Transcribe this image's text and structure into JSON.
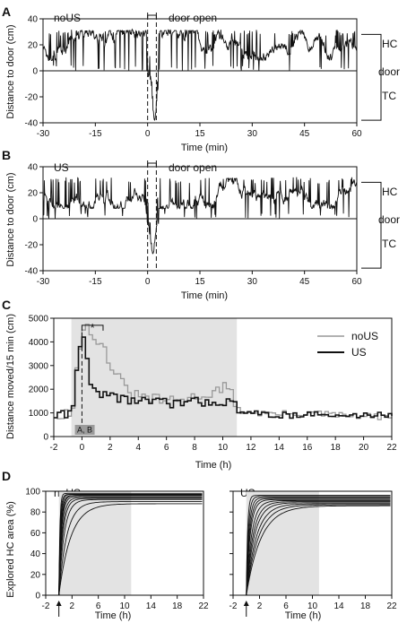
{
  "chart_data": [
    {
      "panel": "A",
      "type": "line",
      "panel_label": "A",
      "condition_label": "noUS",
      "annotation": "door open",
      "xlabel": "Time (min)",
      "ylabel": "Distance to door (cm)",
      "xlim": [
        -30,
        60
      ],
      "ylim": [
        -40,
        40
      ],
      "x_ticks": [
        -30,
        -15,
        0,
        15,
        30,
        45,
        60
      ],
      "y_ticks": [
        -40,
        -20,
        0,
        20,
        40
      ],
      "door_open_interval": [
        0,
        2.5
      ],
      "zone_labels": {
        "upper": "HC",
        "middle": "door",
        "lower": "TC"
      },
      "trace_profile": {
        "home_level": 20,
        "dip_to_door_fraction": 0.6,
        "min_value": -38,
        "min_time": 2
      }
    },
    {
      "panel": "B",
      "type": "line",
      "panel_label": "B",
      "condition_label": "US",
      "annotation": "door open",
      "xlabel": "Time (min)",
      "ylabel": "Distance to door (cm)",
      "xlim": [
        -30,
        60
      ],
      "ylim": [
        -40,
        40
      ],
      "x_ticks": [
        -30,
        -15,
        0,
        15,
        30,
        45,
        60
      ],
      "y_ticks": [
        -40,
        -20,
        0,
        20,
        40
      ],
      "door_open_interval": [
        0,
        2.5
      ],
      "zone_labels": {
        "upper": "HC",
        "middle": "door",
        "lower": "TC"
      },
      "trace_profile": {
        "home_level": 20,
        "dip_to_door_fraction": 0.45,
        "min_value": -27,
        "min_time": 1.5
      }
    },
    {
      "panel": "C",
      "type": "line",
      "panel_label": "C",
      "xlabel": "Time (h)",
      "ylabel": "Distance moved/15 min (cm)",
      "xlim": [
        -2,
        22
      ],
      "ylim": [
        0,
        5000
      ],
      "x_ticks": [
        -2,
        0,
        2,
        4,
        6,
        8,
        10,
        12,
        14,
        16,
        18,
        20,
        22
      ],
      "y_ticks": [
        0,
        1000,
        2000,
        3000,
        4000,
        5000
      ],
      "shaded_interval": [
        -0.75,
        11
      ],
      "dashed_line_x": 0,
      "significance": "*",
      "significance_span": [
        0,
        1.5
      ],
      "box_label": "A, B",
      "series": [
        {
          "name": "noUS",
          "color": "#999999",
          "points": [
            [
              -2,
              900
            ],
            [
              -1.5,
              950
            ],
            [
              -1,
              1050
            ],
            [
              -0.75,
              1200
            ],
            [
              -0.5,
              2900
            ],
            [
              -0.25,
              3700
            ],
            [
              0,
              4500
            ],
            [
              0.25,
              4750
            ],
            [
              0.5,
              4300
            ],
            [
              0.75,
              4100
            ],
            [
              1,
              3900
            ],
            [
              1.5,
              3700
            ],
            [
              2,
              2900
            ],
            [
              2.5,
              2500
            ],
            [
              3,
              2000
            ],
            [
              3.5,
              1800
            ],
            [
              4,
              1700
            ],
            [
              5,
              1600
            ],
            [
              6,
              1500
            ],
            [
              7,
              1550
            ],
            [
              8,
              1700
            ],
            [
              9,
              1800
            ],
            [
              10,
              2100
            ],
            [
              10.5,
              1800
            ],
            [
              11,
              1100
            ],
            [
              12,
              1000
            ],
            [
              14,
              950
            ],
            [
              16,
              1000
            ],
            [
              18,
              900
            ],
            [
              20,
              850
            ],
            [
              22,
              800
            ]
          ]
        },
        {
          "name": "US",
          "color": "#111111",
          "points": [
            [
              -2,
              900
            ],
            [
              -1.5,
              950
            ],
            [
              -1,
              1000
            ],
            [
              -0.75,
              1300
            ],
            [
              -0.5,
              2800
            ],
            [
              -0.25,
              3800
            ],
            [
              0,
              4200
            ],
            [
              0.25,
              3300
            ],
            [
              0.5,
              2200
            ],
            [
              1,
              1900
            ],
            [
              2,
              1700
            ],
            [
              3,
              1600
            ],
            [
              4,
              1500
            ],
            [
              6,
              1400
            ],
            [
              8,
              1450
            ],
            [
              10,
              1500
            ],
            [
              11,
              1200
            ],
            [
              12,
              950
            ],
            [
              14,
              900
            ],
            [
              16,
              950
            ],
            [
              18,
              850
            ],
            [
              20,
              900
            ],
            [
              22,
              950
            ]
          ]
        }
      ]
    },
    {
      "panel": "D-left",
      "type": "line",
      "panel_label": "D",
      "condition_label": "noUS",
      "xlabel": "Time (h)",
      "ylabel": "Explored HC area (%)",
      "xlim": [
        -2,
        22
      ],
      "ylim": [
        0,
        100
      ],
      "x_ticks": [
        -2,
        2,
        6,
        10,
        14,
        18,
        22
      ],
      "y_ticks": [
        0,
        20,
        40,
        60,
        80,
        100
      ],
      "shaded_interval": [
        0,
        11
      ],
      "arrow_x": 0,
      "curves_plateau": [
        98,
        97,
        97,
        96,
        96,
        95,
        94,
        93,
        92,
        90,
        88
      ],
      "curves_tau": [
        0.15,
        0.2,
        0.25,
        0.3,
        0.35,
        0.4,
        0.5,
        0.6,
        0.8,
        1.2,
        1.8
      ]
    },
    {
      "panel": "D-right",
      "type": "line",
      "condition_label": "US",
      "xlabel": "Time (h)",
      "ylabel": "",
      "xlim": [
        -2,
        22
      ],
      "ylim": [
        0,
        100
      ],
      "x_ticks": [
        -2,
        2,
        6,
        10,
        14,
        18,
        22
      ],
      "y_ticks": [
        0,
        20,
        40,
        60,
        80,
        100
      ],
      "shaded_interval": [
        0,
        11
      ],
      "arrow_x": 0,
      "curves_plateau": [
        96,
        95,
        94,
        93,
        92,
        91,
        90,
        89,
        88,
        87,
        86
      ],
      "curves_tau": [
        0.2,
        0.3,
        0.4,
        0.5,
        0.6,
        0.8,
        1.0,
        1.2,
        1.5,
        1.8,
        2.2
      ]
    }
  ]
}
